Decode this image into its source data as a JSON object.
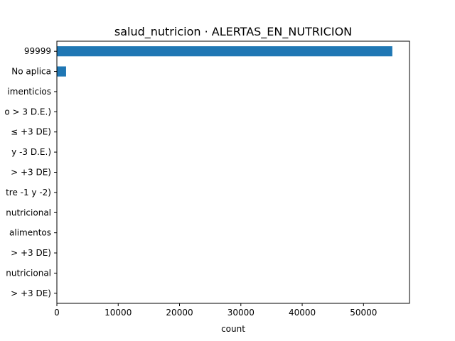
{
  "chart_data": {
    "type": "bar",
    "orientation": "horizontal",
    "title": "salud_nutricion · ALERTAS_EN_NUTRICION",
    "xlabel": "count",
    "ylabel": "",
    "categories": [
      "99999",
      "No aplica",
      "imenticios",
      "o > 3 D.E.)",
      "≤ +3 DE)",
      "y -3 D.E.)",
      "> +3 DE)",
      "tre -1 y -2)",
      "nutricional",
      "alimentos",
      "> +3 DE)",
      "nutricional",
      "> +3 DE)"
    ],
    "values": [
      54700,
      1500,
      0,
      0,
      0,
      0,
      0,
      0,
      0,
      0,
      0,
      0,
      0
    ],
    "xlim": [
      0,
      57500
    ],
    "xticks": [
      0,
      10000,
      20000,
      30000,
      40000,
      50000
    ],
    "xtick_labels": [
      "0",
      "10000",
      "20000",
      "30000",
      "40000",
      "50000"
    ],
    "bar_color": "#1f77b4",
    "grid": false,
    "legend": "none"
  }
}
